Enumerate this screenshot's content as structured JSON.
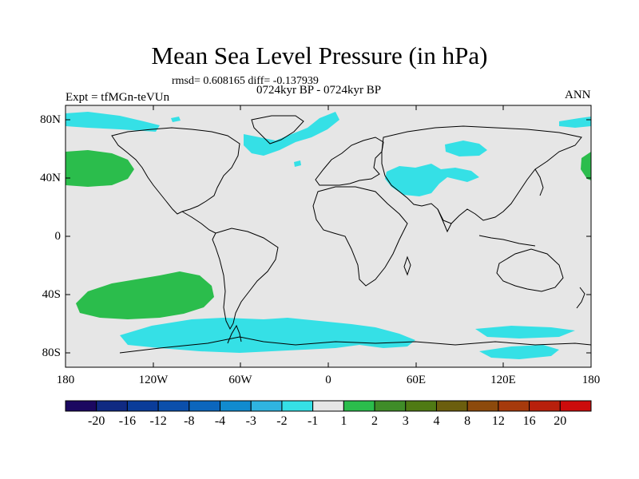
{
  "title": "Mean Sea Level Pressure (in hPa)",
  "stats_line": "rmsd= 0.608165 diff= -0.137939",
  "period": "0724kyr BP - 0724kyr BP",
  "experiment": "Expt = tfMGn-teVUn",
  "season": "ANN",
  "lat_labels": [
    "80N",
    "40N",
    "0",
    "40S",
    "80S"
  ],
  "lon_labels": [
    "180",
    "120W",
    "60W",
    "0",
    "60E",
    "120E",
    "180"
  ],
  "colorbar": {
    "labels": [
      "-20",
      "-16",
      "-12",
      "-8",
      "-4",
      "-3",
      "-2",
      "-1",
      "1",
      "2",
      "3",
      "4",
      "8",
      "12",
      "16",
      "20"
    ],
    "colors": [
      "#1b0860",
      "#102a82",
      "#0a3c99",
      "#0b4fab",
      "#0c66bd",
      "#118bcf",
      "#2fb4e0",
      "#35e0e6",
      "#e6e6e6",
      "#2bbd4c",
      "#3f8c28",
      "#4f7a14",
      "#6b5e0e",
      "#8c4a0c",
      "#a63a0c",
      "#b8200c",
      "#cc0c0c"
    ]
  },
  "fill_colors": {
    "background": "#e6e6e6",
    "negative_small": "#35e0e6",
    "positive_small": "#2bbd4c"
  }
}
